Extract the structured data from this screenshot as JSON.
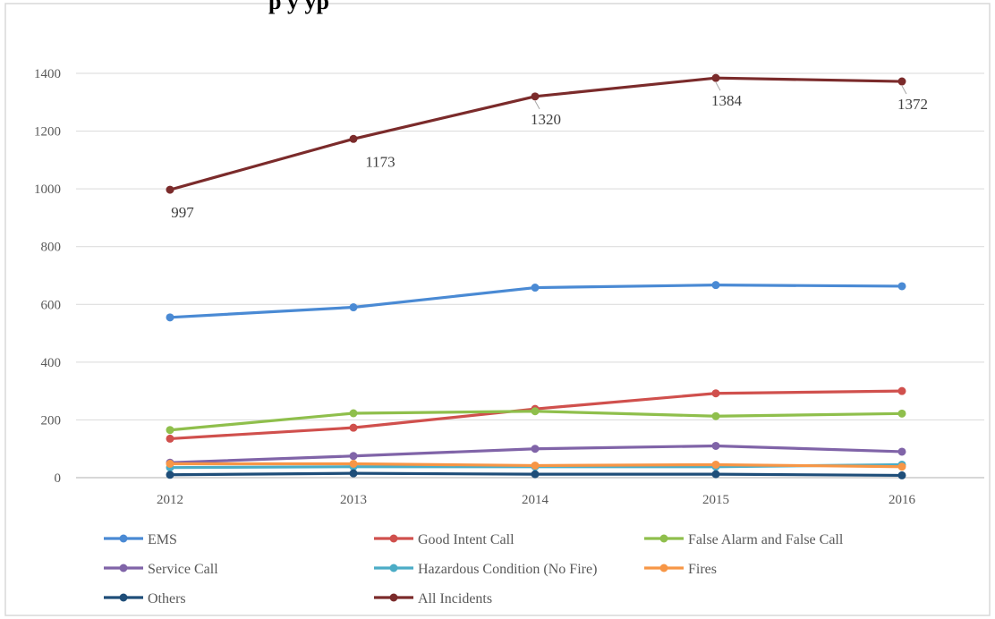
{
  "chart_data": {
    "type": "line",
    "title": "",
    "title_visible_fragment": "p                                                                          y yp",
    "xlabel": "",
    "ylabel": "",
    "categories": [
      "2012",
      "2013",
      "2014",
      "2015",
      "2016"
    ],
    "ylim": [
      0,
      1400
    ],
    "yticks": [
      "0",
      "200",
      "400",
      "600",
      "800",
      "1000",
      "1200",
      "1400"
    ],
    "grid": true,
    "legend_position": "bottom",
    "series": [
      {
        "name": "EMS",
        "color": "#4a8ad4",
        "values": [
          555,
          590,
          658,
          667,
          663
        ]
      },
      {
        "name": "Good Intent Call",
        "color": "#d0504d",
        "values": [
          135,
          173,
          238,
          292,
          300
        ]
      },
      {
        "name": "False Alarm and False Call",
        "color": "#8fbf4c",
        "values": [
          165,
          223,
          230,
          213,
          222
        ]
      },
      {
        "name": "Service Call",
        "color": "#8064a8",
        "values": [
          52,
          75,
          100,
          110,
          90
        ]
      },
      {
        "name": "Hazardous Condition (No Fire)",
        "color": "#4bacc6",
        "values": [
          35,
          38,
          38,
          38,
          45
        ]
      },
      {
        "name": "Fires",
        "color": "#f79646",
        "values": [
          48,
          48,
          42,
          45,
          38
        ]
      },
      {
        "name": "Others",
        "color": "#1f4e79",
        "values": [
          10,
          15,
          12,
          12,
          8
        ]
      },
      {
        "name": "All Incidents",
        "color": "#7b2b2b",
        "values": [
          997,
          1173,
          1320,
          1384,
          1372
        ],
        "data_labels": [
          "997",
          "1173",
          "1320",
          "1384",
          "1372"
        ]
      }
    ]
  }
}
